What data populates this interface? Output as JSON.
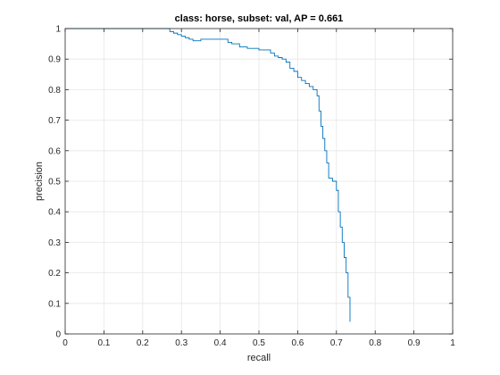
{
  "chart_data": {
    "type": "line",
    "title": "class: horse, subset: val, AP = 0.661",
    "xlabel": "recall",
    "ylabel": "precision",
    "xlim": [
      0,
      1
    ],
    "ylim": [
      0,
      1
    ],
    "xticks": [
      "0",
      "0.1",
      "0.2",
      "0.3",
      "0.4",
      "0.5",
      "0.6",
      "0.7",
      "0.8",
      "0.9",
      "1"
    ],
    "yticks": [
      "0",
      "0.1",
      "0.2",
      "0.3",
      "0.4",
      "0.5",
      "0.6",
      "0.7",
      "0.8",
      "0.9",
      "1"
    ],
    "grid": true,
    "line_color": "#0072bd",
    "series": [
      {
        "x": [
          0.0,
          0.26,
          0.27,
          0.28,
          0.29,
          0.3,
          0.31,
          0.32,
          0.33,
          0.35,
          0.37,
          0.39,
          0.41,
          0.42,
          0.43,
          0.45,
          0.47,
          0.48,
          0.5,
          0.52,
          0.53,
          0.54,
          0.55,
          0.56,
          0.57,
          0.58,
          0.59,
          0.6,
          0.61,
          0.62,
          0.63,
          0.64,
          0.65,
          0.655,
          0.66,
          0.665,
          0.67,
          0.675,
          0.68,
          0.69,
          0.7,
          0.705,
          0.71,
          0.715,
          0.72,
          0.725,
          0.73,
          0.735,
          0.735
        ],
        "y": [
          1.0,
          1.0,
          0.99,
          0.985,
          0.98,
          0.975,
          0.97,
          0.965,
          0.96,
          0.965,
          0.965,
          0.965,
          0.965,
          0.955,
          0.95,
          0.94,
          0.935,
          0.935,
          0.93,
          0.93,
          0.92,
          0.91,
          0.905,
          0.9,
          0.89,
          0.87,
          0.86,
          0.84,
          0.83,
          0.82,
          0.81,
          0.8,
          0.78,
          0.73,
          0.68,
          0.64,
          0.6,
          0.56,
          0.51,
          0.5,
          0.47,
          0.4,
          0.35,
          0.3,
          0.25,
          0.2,
          0.12,
          0.08,
          0.04
        ]
      }
    ]
  }
}
